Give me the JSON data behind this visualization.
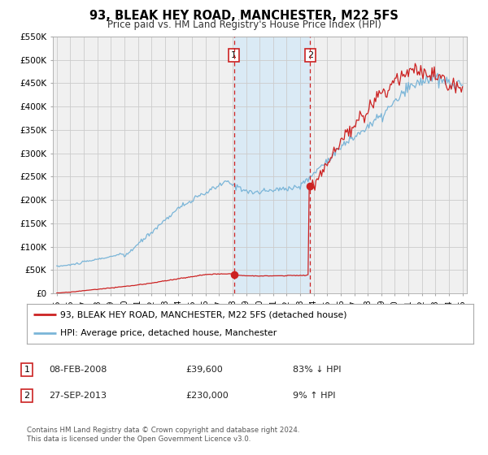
{
  "title": "93, BLEAK HEY ROAD, MANCHESTER, M22 5FS",
  "subtitle": "Price paid vs. HM Land Registry's House Price Index (HPI)",
  "ylim": [
    0,
    550000
  ],
  "yticks": [
    0,
    50000,
    100000,
    150000,
    200000,
    250000,
    300000,
    350000,
    400000,
    450000,
    500000,
    550000
  ],
  "ytick_labels": [
    "£0",
    "£50K",
    "£100K",
    "£150K",
    "£200K",
    "£250K",
    "£300K",
    "£350K",
    "£400K",
    "£450K",
    "£500K",
    "£550K"
  ],
  "xlim_start": 1994.7,
  "xlim_end": 2025.3,
  "hpi_color": "#7ab5d8",
  "price_color": "#cc2222",
  "marker_color": "#cc2222",
  "vline_color": "#cc2222",
  "shade_color": "#daeaf5",
  "event1_x": 2008.1,
  "event1_y_price": 39600,
  "event1_label": "08-FEB-2008",
  "event1_price": "£39,600",
  "event1_hpi": "83% ↓ HPI",
  "event2_x": 2013.74,
  "event2_y_price": 230000,
  "event2_label": "27-SEP-2013",
  "event2_price": "£230,000",
  "event2_hpi": "9% ↑ HPI",
  "legend_label_price": "93, BLEAK HEY ROAD, MANCHESTER, M22 5FS (detached house)",
  "legend_label_hpi": "HPI: Average price, detached house, Manchester",
  "footnote": "Contains HM Land Registry data © Crown copyright and database right 2024.\nThis data is licensed under the Open Government Licence v3.0.",
  "background_color": "#ffffff",
  "plot_bg_color": "#f0f0f0"
}
